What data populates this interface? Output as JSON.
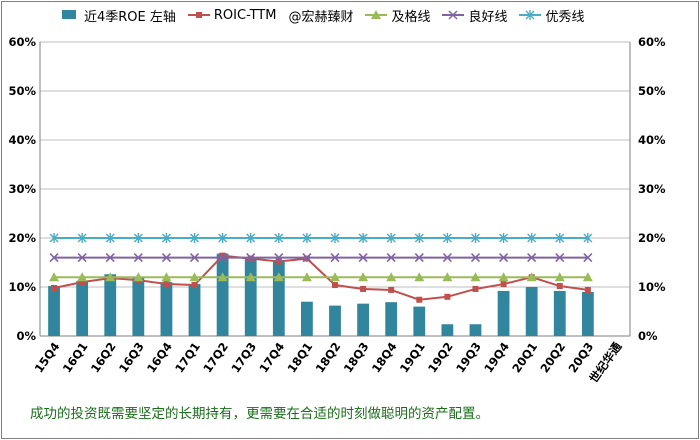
{
  "chart_data": {
    "type": "bar",
    "categories": [
      "15Q4",
      "16Q1",
      "16Q2",
      "16Q3",
      "16Q4",
      "17Q1",
      "17Q2",
      "17Q3",
      "17Q4",
      "18Q1",
      "18Q2",
      "18Q3",
      "18Q4",
      "19Q1",
      "19Q2",
      "19Q3",
      "19Q4",
      "20Q1",
      "20Q2",
      "20Q3",
      "世纪华通"
    ],
    "ylim": [
      0,
      60
    ],
    "yticks": [
      "0%",
      "10%",
      "20%",
      "30%",
      "40%",
      "50%",
      "60%"
    ],
    "grid": true,
    "legend_position": "top",
    "watermark": "@宏赫臻财",
    "series": [
      {
        "name": "近4季ROE 左轴",
        "kind": "bar",
        "color": "#31859c",
        "values": [
          10.2,
          11.2,
          12.6,
          12.0,
          11.0,
          10.6,
          16.8,
          16.0,
          15.4,
          7.0,
          6.2,
          6.6,
          6.9,
          6.0,
          2.4,
          2.4,
          9.2,
          10.0,
          9.2,
          9.0,
          null
        ]
      },
      {
        "name": "ROIC-TTM",
        "kind": "line",
        "color": "#c0504d",
        "marker": "square",
        "values": [
          9.8,
          11.0,
          11.8,
          11.4,
          10.6,
          10.4,
          16.4,
          15.8,
          15.2,
          15.8,
          10.4,
          9.6,
          9.4,
          7.4,
          8.0,
          9.6,
          10.6,
          12.0,
          10.2,
          9.4,
          null
        ]
      },
      {
        "name": "及格线",
        "kind": "line",
        "color": "#9bbb59",
        "marker": "triangle",
        "values": [
          12,
          12,
          12,
          12,
          12,
          12,
          12,
          12,
          12,
          12,
          12,
          12,
          12,
          12,
          12,
          12,
          12,
          12,
          12,
          12,
          null
        ]
      },
      {
        "name": "良好线",
        "kind": "line",
        "color": "#8064a2",
        "marker": "x",
        "values": [
          16,
          16,
          16,
          16,
          16,
          16,
          16,
          16,
          16,
          16,
          16,
          16,
          16,
          16,
          16,
          16,
          16,
          16,
          16,
          16,
          null
        ]
      },
      {
        "name": "优秀线",
        "kind": "line",
        "color": "#4bacc6",
        "marker": "star",
        "values": [
          20,
          20,
          20,
          20,
          20,
          20,
          20,
          20,
          20,
          20,
          20,
          20,
          20,
          20,
          20,
          20,
          20,
          20,
          20,
          20,
          null
        ]
      }
    ],
    "note": "成功的投资既需要坚定的长期持有，更需要在合适的时刻做聪明的资产配置。"
  }
}
